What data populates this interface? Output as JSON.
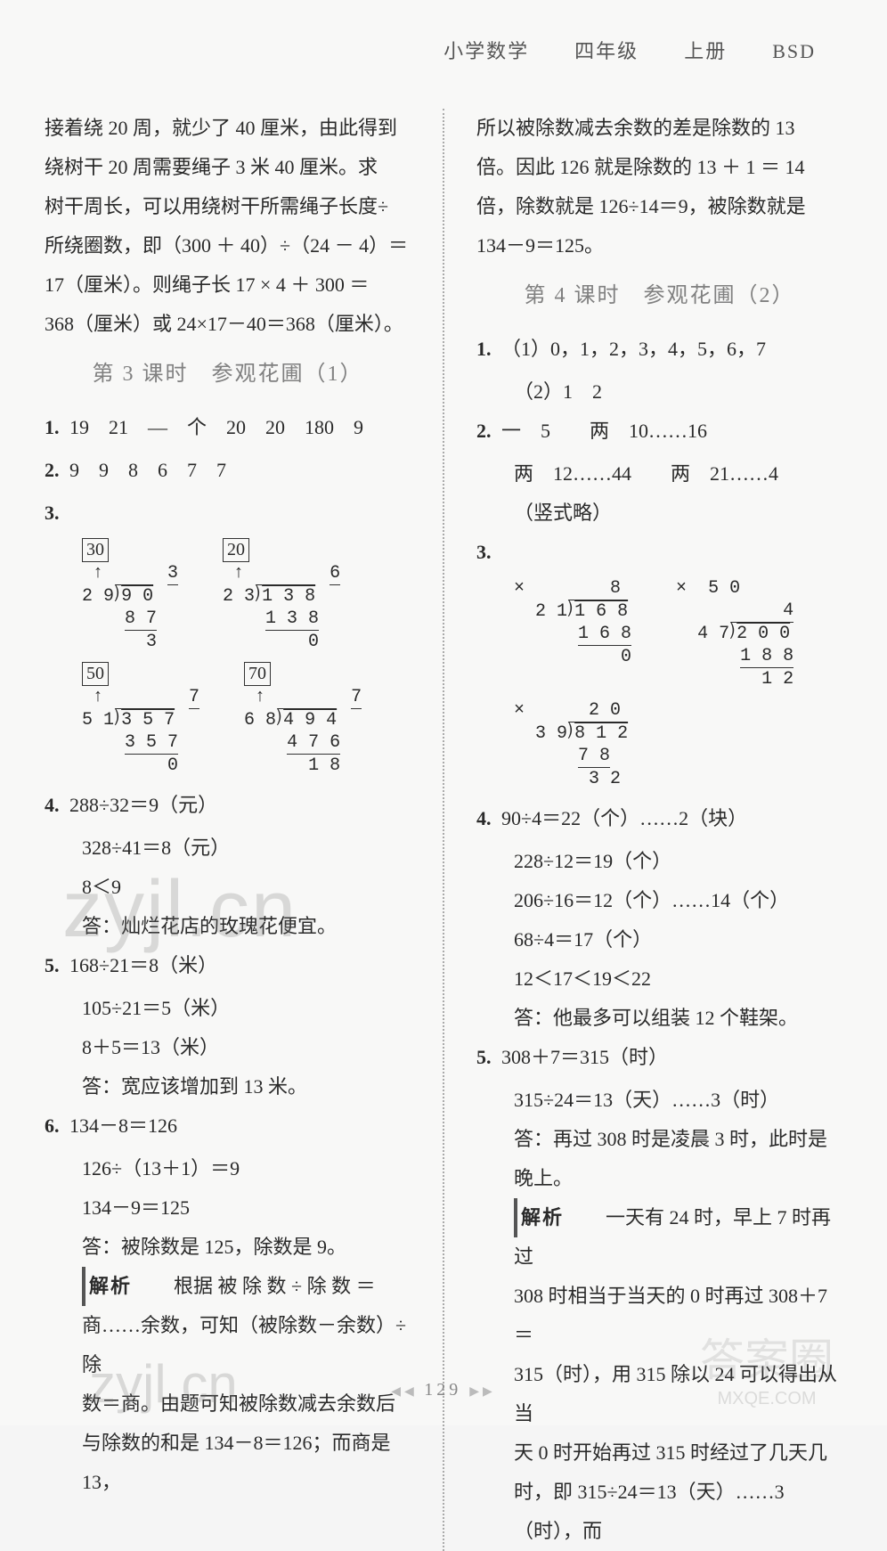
{
  "header": {
    "subject": "小学数学",
    "grade": "四年级",
    "volume": "上册",
    "edition": "BSD"
  },
  "leftColumn": {
    "intro_lines": [
      "接着绕 20 周，就少了 40 厘米，由此得到",
      "绕树干 20 周需要绳子 3 米 40 厘米。求",
      "树干周长，可以用绕树干所需绳子长度÷",
      "所绕圈数，即（300 ＋ 40）÷（24 － 4）＝",
      "17（厘米）。则绳子长 17 × 4 ＋ 300 ＝",
      "368（厘米）或 24×17－40＝368（厘米）。"
    ],
    "section3_title": "第 3 课时　参观花圃（1）",
    "q1": "19　21　—　个　20　20　180　9",
    "q2": "9　9　8　6　7　7",
    "div1": {
      "est": "30",
      "quo": "3",
      "dvs": "2 9",
      "dvd": "9 0",
      "s1": "8 7",
      "r": "3"
    },
    "div2": {
      "est": "20",
      "quo": "6",
      "dvs": "2 3",
      "dvd": "1 3 8",
      "s1": "1 3 8",
      "r": "0"
    },
    "div3": {
      "est": "50",
      "quo": "7",
      "dvs": "5 1",
      "dvd": "3 5 7",
      "s1": "3 5 7",
      "r": "0"
    },
    "div4": {
      "est": "70",
      "quo": "7",
      "dvs": "6 8",
      "dvd": "4 9 4",
      "s1": "4 7 6",
      "r": "1 8"
    },
    "q4": [
      "288÷32＝9（元）",
      "328÷41＝8（元）",
      "8＜9",
      "答：灿烂花店的玫瑰花便宜。"
    ],
    "q5": [
      "168÷21＝8（米）",
      "105÷21＝5（米）",
      "8＋5＝13（米）",
      "答：宽应该增加到 13 米。"
    ],
    "q6": [
      "134－8＝126",
      "126÷（13＋1）＝9",
      "134－9＝125",
      "答：被除数是 125，除数是 9。"
    ],
    "analysis6": [
      "根据 被 除 数 ÷ 除 数 ＝",
      "商……余数，可知（被除数－余数）÷除",
      "数＝商。由题可知被除数减去余数后",
      "与除数的和是 134－8＝126；而商是 13，"
    ]
  },
  "rightColumn": {
    "intro_lines": [
      "所以被除数减去余数的差是除数的 13",
      "倍。因此 126 就是除数的 13 ＋ 1 ＝ 14",
      "倍，除数就是 126÷14＝9，被除数就是",
      "134－9＝125。"
    ],
    "section4_title": "第 4 课时　参观花圃（2）",
    "q1a": "（1）0，1，2，3，4，5，6，7",
    "q1b": "（2）1　2",
    "q2": [
      "一　5　　两　10……16",
      "两　12……44　　两　21……4",
      "（竖式略）"
    ],
    "divA": {
      "chk": "×",
      "quo": "8",
      "dvs": "2 1",
      "dvd": "1 6 8",
      "s1": "1 6 8",
      "r": "0"
    },
    "divB": {
      "chk": "×",
      "quo_est": "5 0",
      "quo": "4",
      "dvs": "4 7",
      "dvd": "2 0 0",
      "s1": "1 8 8",
      "r": "1 2"
    },
    "divC": {
      "chk": "×",
      "quo": "2 0",
      "dvs": "3 9",
      "dvd": "8 1 2",
      "s1": "7 8",
      "r": "3 2"
    },
    "q4": [
      "90÷4＝22（个）……2（块）",
      "228÷12＝19（个）",
      "206÷16＝12（个）……14（个）",
      "68÷4＝17（个）",
      "12＜17＜19＜22",
      "答：他最多可以组装 12 个鞋架。"
    ],
    "q5": [
      "308＋7＝315（时）",
      "315÷24＝13（天）……3（时）",
      "答：再过 308 时是凌晨 3 时，此时是",
      "晚上。"
    ],
    "analysis5": [
      "一天有 24 时，早上 7 时再过",
      "308 时相当于当天的 0 时再过 308＋7＝",
      "315（时），用 315 除以 24 可以得出从当",
      "天 0 时开始再过 315 时经过了几天几",
      "时，即 315÷24＝13（天）……3（时），而"
    ]
  },
  "labels": {
    "analysis": "解析"
  },
  "footer": {
    "page": "129"
  },
  "watermarks": {
    "w1": "zyjl.cn",
    "w2": "zyjl.cn",
    "w3_top": "答案圈",
    "w3_bottom": "MXQE.COM"
  }
}
